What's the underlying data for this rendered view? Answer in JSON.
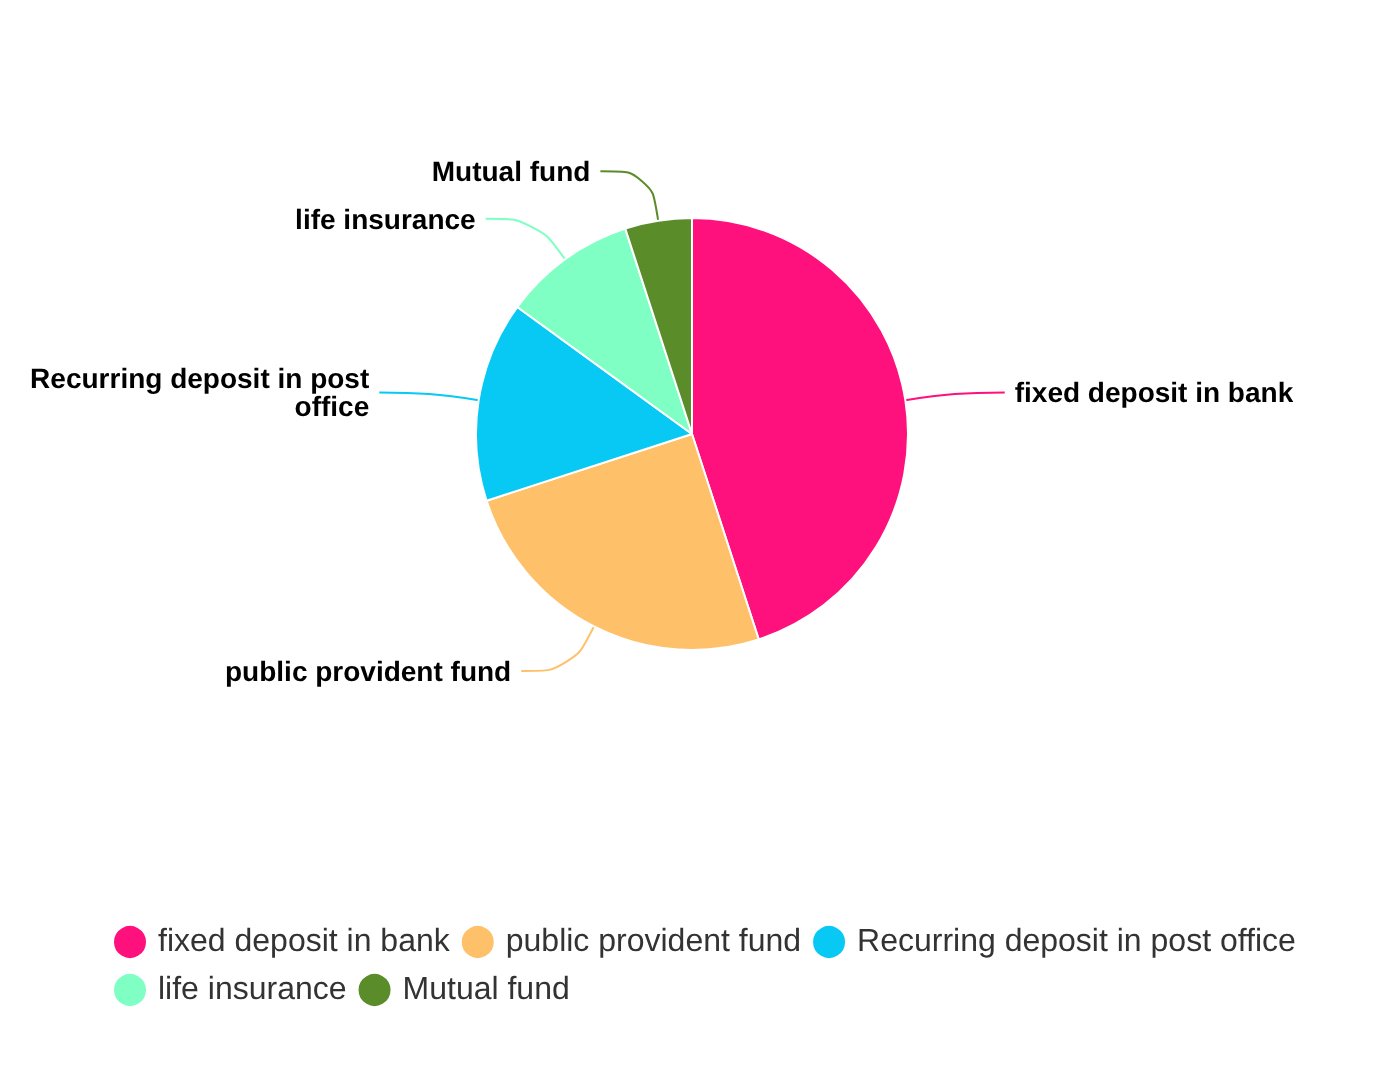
{
  "chart_data": {
    "type": "pie",
    "categories": [
      "fixed deposit in bank",
      "public provident fund",
      "Recurring deposit in post office",
      "life insurance",
      "Mutual fund"
    ],
    "values": [
      45,
      25,
      15,
      10,
      5
    ],
    "colors": [
      "#fe117c",
      "#ffc06a",
      "#07c9f3",
      "#7fffc4",
      "#5b8c2a"
    ],
    "legend": "bottom"
  }
}
